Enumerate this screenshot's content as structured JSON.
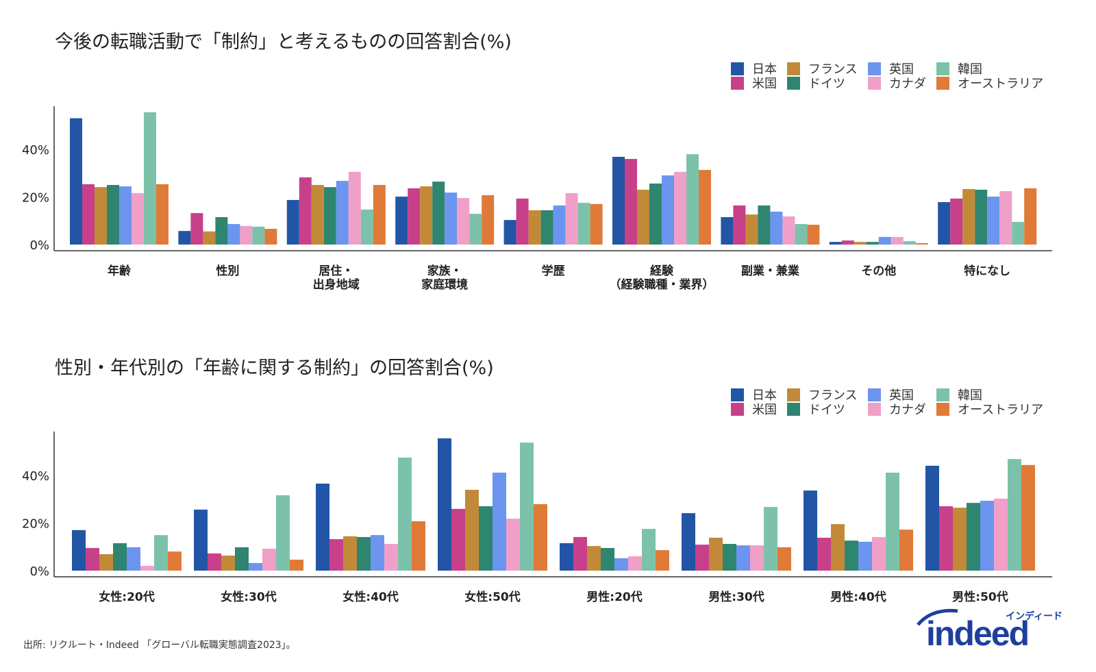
{
  "series": [
    {
      "name": "日本",
      "color": "#2355a6"
    },
    {
      "name": "米国",
      "color": "#c8408a"
    },
    {
      "name": "フランス",
      "color": "#c28a38"
    },
    {
      "name": "ドイツ",
      "color": "#2e8570"
    },
    {
      "name": "英国",
      "color": "#6b95ee"
    },
    {
      "name": "カナダ",
      "color": "#f0a0c8"
    },
    {
      "name": "韓国",
      "color": "#7cc2ab"
    },
    {
      "name": "オーストラリア",
      "color": "#e07a38"
    }
  ],
  "chart_data": [
    {
      "type": "bar",
      "title": "今後の転職活動で「制約」と考えるものの回答割合(%)",
      "yticks": [
        "0%",
        "20%",
        "40%"
      ],
      "ylim": [
        0,
        60
      ],
      "legend_position": "top-right",
      "categories": [
        "年齢",
        "性別",
        "居住・\n出身地域",
        "家族・\n家庭環境",
        "学歴",
        "経験\n（経験職種・業界）",
        "副業・兼業",
        "その他",
        "特になし"
      ],
      "values": [
        [
          53,
          25.3,
          24.1,
          25,
          24.4,
          21.6,
          55.5,
          25.3
        ],
        [
          5.7,
          13.2,
          5.5,
          11.5,
          8.6,
          7.8,
          7.5,
          6.6
        ],
        [
          18.7,
          28.2,
          25,
          24.1,
          26.7,
          30.5,
          14.7,
          25
        ],
        [
          20.1,
          23.6,
          24.4,
          26.4,
          21.8,
          19.5,
          12.9,
          20.7
        ],
        [
          10.3,
          19.3,
          14.4,
          14.4,
          16.4,
          21.6,
          17.5,
          17
        ],
        [
          36.8,
          35.9,
          23,
          25.6,
          29,
          30.5,
          37.9,
          31.3
        ],
        [
          11.5,
          16.4,
          12.6,
          16.4,
          13.8,
          11.8,
          8.6,
          8.3
        ],
        [
          1.1,
          1.7,
          1.1,
          1.1,
          3.2,
          3.2,
          1.4,
          0.6
        ],
        [
          17.8,
          19.3,
          23.3,
          23,
          20.1,
          22.4,
          9.5,
          23.6
        ]
      ]
    },
    {
      "type": "bar",
      "title": "性別・年代別の「年齢に関する制約」の回答割合(%)",
      "yticks": [
        "0%",
        "20%",
        "40%"
      ],
      "ylim": [
        0,
        60
      ],
      "legend_position": "top-right",
      "categories": [
        "女性:20代",
        "女性:30代",
        "女性:40代",
        "女性:50代",
        "男性:20代",
        "男性:30代",
        "男性:40代",
        "男性:50代"
      ],
      "values": [
        [
          17,
          9.5,
          6.9,
          11.5,
          9.8,
          2,
          14.9,
          8
        ],
        [
          25.6,
          7.2,
          6.3,
          9.8,
          3.2,
          9.2,
          31.6,
          4.6
        ],
        [
          36.5,
          13.2,
          14.4,
          14.1,
          14.9,
          11.2,
          47.4,
          20.7
        ],
        [
          55.5,
          25.9,
          33.9,
          27,
          41.1,
          21.8,
          53.7,
          27.9
        ],
        [
          11.5,
          14.1,
          10.3,
          9.5,
          5.2,
          6,
          17.5,
          8.6
        ],
        [
          24.1,
          10.9,
          13.8,
          11.2,
          10.6,
          10.6,
          26.7,
          9.8
        ],
        [
          33.6,
          13.8,
          19.5,
          12.6,
          12.1,
          14.1,
          41.1,
          17.2
        ],
        [
          44,
          27,
          26.4,
          28.4,
          29.3,
          30.2,
          46.8,
          44.3
        ]
      ]
    }
  ],
  "footer": {
    "source": "出所: リクルート・Indeed 「グローバル転職実態調査2023」。"
  },
  "logo": {
    "text": "indeed",
    "kana": "インディード"
  }
}
